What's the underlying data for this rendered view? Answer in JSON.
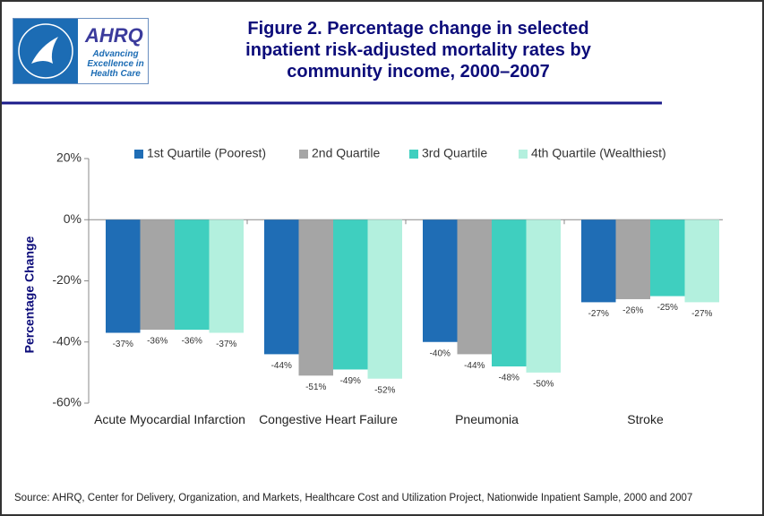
{
  "header": {
    "logo_name": "AHRQ",
    "logo_tagline": "Advancing Excellence in Health Care"
  },
  "chart_data": {
    "type": "bar",
    "title": "Figure 2. Percentage change in selected inpatient risk-adjusted mortality rates by community income, 2000–2007",
    "y_label": "Percentage Change",
    "categories": [
      "Acute Myocardial Infarction",
      "Congestive Heart Failure",
      "Pneumonia",
      "Stroke"
    ],
    "series": [
      {
        "name": "1st Quartile (Poorest)",
        "color": "#1f6db5",
        "values": [
          -37,
          -44,
          -40,
          -27
        ],
        "value_labels": [
          "-37%",
          "-44%",
          "-40%",
          "-27%"
        ]
      },
      {
        "name": "2nd Quartile",
        "color": "#a5a5a5",
        "values": [
          -36,
          -51,
          -44,
          -26
        ],
        "value_labels": [
          "-36%",
          "-51%",
          "-44%",
          "-26%"
        ]
      },
      {
        "name": "3rd Quartile",
        "color": "#3fcfbf",
        "values": [
          -36,
          -49,
          -48,
          -25
        ],
        "value_labels": [
          "-36%",
          "-49%",
          "-48%",
          "-25%"
        ]
      },
      {
        "name": "4th Quartile (Wealthiest)",
        "color": "#b3f0de",
        "values": [
          -37,
          -52,
          -50,
          -27
        ],
        "value_labels": [
          "-37%",
          "-52%",
          "-50%",
          "-27%"
        ]
      }
    ],
    "ylim": [
      -60,
      20
    ],
    "yticks": [
      {
        "value": -60,
        "label": "-60%"
      },
      {
        "value": -40,
        "label": "-40%"
      },
      {
        "value": -20,
        "label": "-20%"
      },
      {
        "value": 0,
        "label": "0%"
      },
      {
        "value": 20,
        "label": "20%"
      }
    ],
    "legend": "top",
    "source": "Source:  AHRQ, Center for Delivery, Organization, and Markets, Healthcare Cost and Utilization Project, Nationwide Inpatient Sample, 2000 and 2007"
  }
}
